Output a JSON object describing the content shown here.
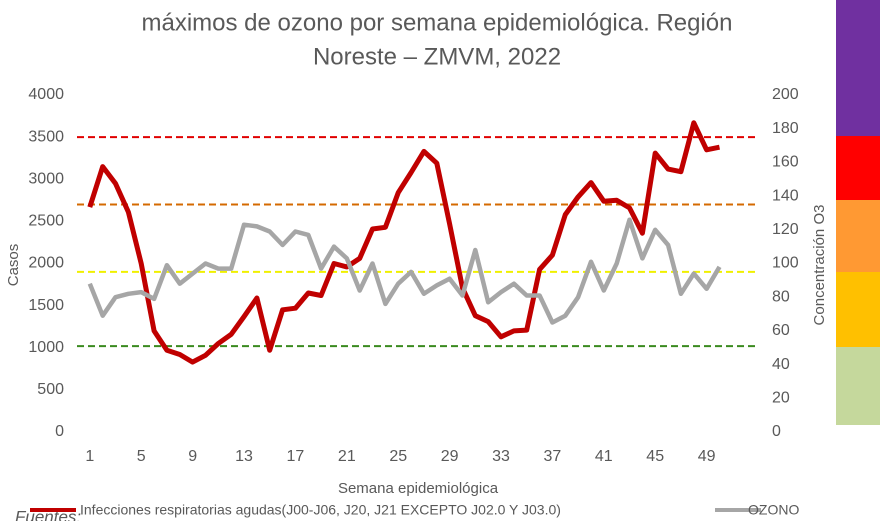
{
  "chart_data": {
    "type": "line",
    "title": "máximos de ozono por semana epidemiológica. Región",
    "subtitle": "Noreste – ZMVM, 2022",
    "x_label": "Semana epidemiológica",
    "y_label": "Casos",
    "y2_label": "Concentración O3",
    "footnote": "Fuentes:",
    "x": [
      1,
      2,
      3,
      4,
      5,
      6,
      7,
      8,
      9,
      10,
      11,
      12,
      13,
      14,
      15,
      16,
      17,
      18,
      19,
      20,
      21,
      22,
      23,
      24,
      25,
      26,
      27,
      28,
      29,
      30,
      31,
      32,
      33,
      34,
      35,
      36,
      37,
      38,
      39,
      40,
      41,
      42,
      43,
      44,
      45,
      46,
      47,
      48,
      49,
      50
    ],
    "xlim": [
      0,
      53
    ],
    "xticks": [
      1,
      5,
      9,
      13,
      17,
      21,
      25,
      29,
      33,
      37,
      41,
      45,
      49
    ],
    "ylim": [
      0,
      4000
    ],
    "yticks": [
      0,
      500,
      1000,
      1500,
      2000,
      2500,
      3000,
      3500,
      4000
    ],
    "y2lim": [
      0,
      200
    ],
    "y2ticks": [
      0,
      20,
      40,
      60,
      80,
      100,
      120,
      140,
      160,
      180,
      200
    ],
    "series": [
      {
        "name": "Infecciones respiratorias agudas(J00-J06, J20, J21 EXCEPTO J02.0 Y J03.0)",
        "color": "#c00000",
        "values": [
          2670,
          3150,
          2950,
          2610,
          2000,
          1200,
          970,
          920,
          830,
          910,
          1050,
          1160,
          1370,
          1590,
          970,
          1450,
          1470,
          1650,
          1620,
          2000,
          1960,
          2060,
          2410,
          2430,
          2840,
          3080,
          3330,
          3190,
          2470,
          1710,
          1380,
          1310,
          1130,
          1200,
          1210,
          1930,
          2100,
          2580,
          2790,
          2960,
          2740,
          2750,
          2660,
          2360,
          3310,
          3120,
          3090,
          3670,
          3350,
          3380
        ]
      },
      {
        "name": "OZONO",
        "color": "#a6a6a6",
        "axis": "y2",
        "values": [
          88,
          69,
          80,
          82,
          83,
          79,
          99,
          88,
          94,
          100,
          97,
          97,
          123,
          122,
          119,
          111,
          119,
          117,
          97,
          110,
          103,
          84,
          100,
          76,
          88,
          95,
          82,
          87,
          91,
          81,
          108,
          77,
          83,
          88,
          81,
          81,
          65,
          69,
          80,
          101,
          84,
          100,
          126,
          103,
          120,
          111,
          82,
          94,
          85,
          98
        ]
      }
    ],
    "reference_lines": [
      {
        "value": 175,
        "color": "#e00000",
        "axis": "y2"
      },
      {
        "value": 135,
        "color": "#d46a00",
        "axis": "y2"
      },
      {
        "value": 95,
        "color": "#f0f000",
        "axis": "y2"
      },
      {
        "value": 51,
        "color": "#3a8a1e",
        "axis": "y2"
      }
    ]
  }
}
